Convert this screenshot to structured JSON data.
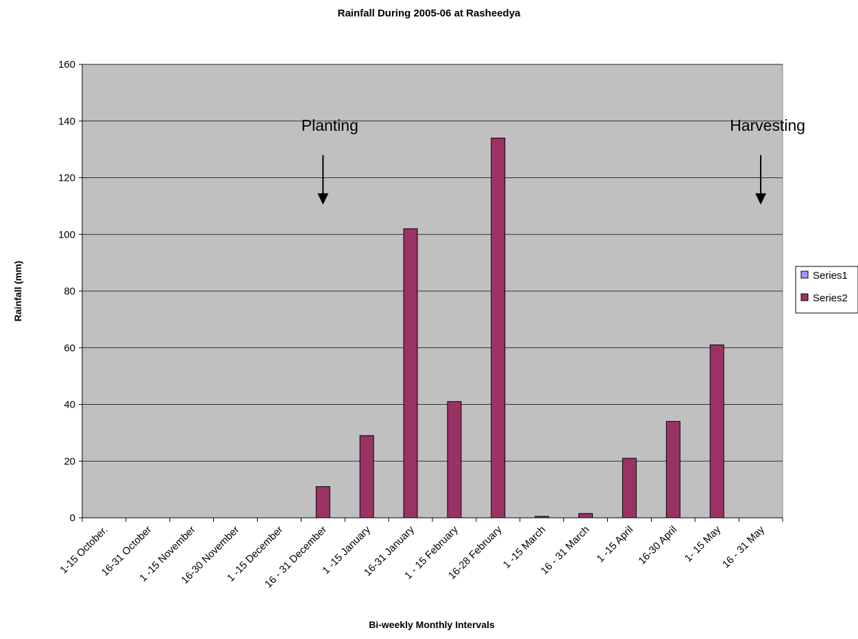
{
  "chart_data": {
    "type": "bar",
    "title": "Rainfall During 2005-06 at Rasheedya",
    "xlabel": "Bi-weekly Monthly Intervals",
    "ylabel": "Rainfall (mm)",
    "ylim": [
      0,
      160
    ],
    "yticks": [
      0,
      20,
      40,
      60,
      80,
      100,
      120,
      140,
      160
    ],
    "grid": true,
    "legend_position": "right",
    "categories": [
      "1-15 October.",
      "16-31 October",
      "1 -15 November",
      "16-30 November",
      "1 -15 December",
      "16 - 31 December",
      "1 -15 January",
      "16-31 January",
      "1 - 15 February",
      "16-28 February",
      "1 -15 March",
      "16 - 31 March",
      "1 -15 April",
      "16-30 April",
      "1- 15 May",
      "16 - 31 May"
    ],
    "series": [
      {
        "name": "Series1",
        "color": "#9999ff",
        "values": [
          0,
          0,
          0,
          0,
          0,
          0,
          0,
          0,
          0,
          0,
          0,
          0,
          0,
          0,
          0,
          0
        ]
      },
      {
        "name": "Series2",
        "color": "#993366",
        "values": [
          0,
          0,
          0,
          0,
          0,
          11,
          29,
          102,
          41,
          134,
          0.5,
          1.5,
          21,
          34,
          61,
          0
        ]
      }
    ],
    "annotations": [
      {
        "text": "Planting",
        "category": "16 - 31 December"
      },
      {
        "text": "Harvesting",
        "category": "16 - 31 May"
      }
    ],
    "colors": {
      "plot_background": "#c0c0c0",
      "gridline": "#000000"
    }
  }
}
